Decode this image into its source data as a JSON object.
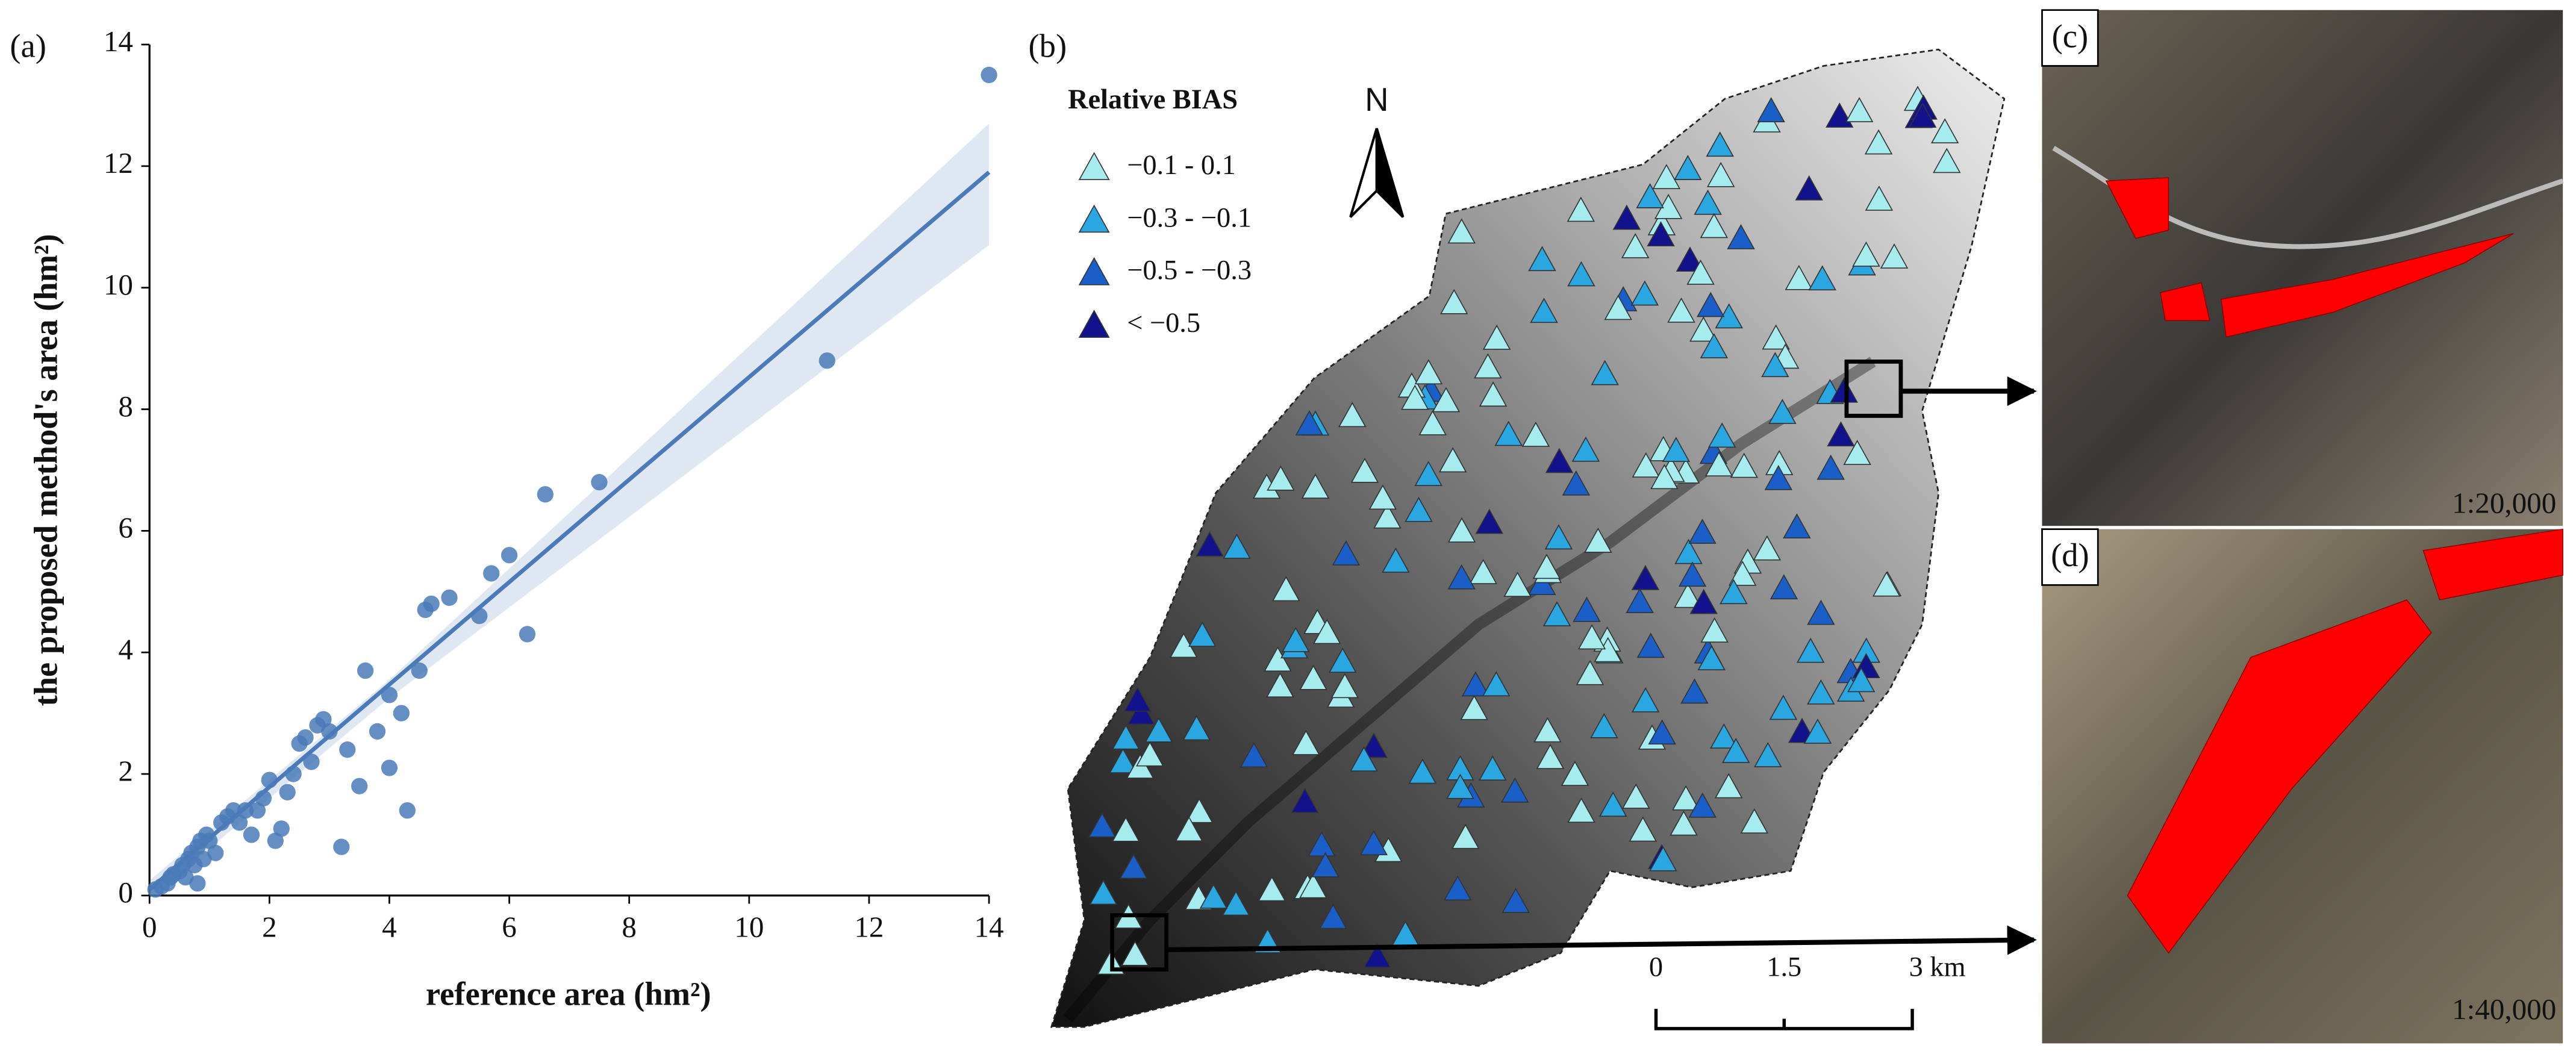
{
  "chart_data": {
    "type": "scatter",
    "x_label": "reference area (hm²)",
    "y_label": "the proposed method's area (hm²)",
    "xlim": [
      0,
      14
    ],
    "ylim": [
      0,
      14
    ],
    "xticks": [
      0,
      2,
      4,
      6,
      8,
      10,
      12,
      14
    ],
    "yticks": [
      0,
      2,
      4,
      6,
      8,
      10,
      12,
      14
    ],
    "color": "#4a7ab8",
    "x": [
      0.1,
      0.2,
      0.3,
      0.35,
      0.4,
      0.5,
      0.55,
      0.6,
      0.65,
      0.7,
      0.75,
      0.8,
      0.85,
      0.9,
      0.95,
      1.0,
      0.8,
      1.1,
      1.2,
      1.3,
      1.4,
      1.5,
      1.6,
      1.7,
      1.8,
      1.9,
      2.0,
      2.1,
      2.2,
      2.3,
      2.4,
      2.5,
      2.6,
      2.7,
      2.8,
      2.9,
      3.0,
      3.2,
      3.3,
      3.5,
      3.6,
      3.8,
      4.0,
      4.0,
      4.2,
      4.3,
      4.5,
      4.6,
      4.7,
      5.0,
      5.5,
      5.7,
      6.0,
      6.3,
      6.6,
      7.5,
      11.3,
      14.0
    ],
    "values": [
      0.1,
      0.15,
      0.2,
      0.3,
      0.35,
      0.4,
      0.5,
      0.3,
      0.6,
      0.7,
      0.5,
      0.8,
      0.9,
      0.6,
      1.0,
      0.9,
      0.2,
      0.7,
      1.2,
      1.3,
      1.4,
      1.2,
      1.4,
      1.0,
      1.4,
      1.6,
      1.9,
      0.9,
      1.1,
      1.7,
      2.0,
      2.5,
      2.6,
      2.2,
      2.8,
      2.9,
      2.7,
      0.8,
      2.4,
      1.8,
      3.7,
      2.7,
      3.3,
      2.1,
      3.0,
      1.4,
      3.7,
      4.7,
      4.8,
      4.9,
      4.6,
      5.3,
      5.6,
      4.3,
      6.6,
      6.8,
      8.8,
      13.5
    ],
    "fit": {
      "x": [
        0,
        14
      ],
      "values": [
        0.1,
        11.9
      ]
    },
    "ci_band": {
      "x": [
        0,
        4,
        14
      ],
      "lower": [
        -0.05,
        3.25,
        10.7
      ],
      "upper": [
        0.25,
        3.55,
        12.7
      ]
    }
  },
  "panel_labels": [
    "(a)",
    "(b)",
    "(c)",
    "(d)"
  ],
  "map": {
    "legend_title": "Relative BIAS",
    "classes": [
      {
        "label": "−0.1 - 0.1",
        "color": "#a6ecee"
      },
      {
        "label": "−0.3 - −0.1",
        "color": "#2aa6e0"
      },
      {
        "label": "−0.5 - −0.3",
        "color": "#1a5fc8"
      },
      {
        "label": "< −0.5",
        "color": "#12128c"
      }
    ],
    "north": "N",
    "scale_labels": [
      "0",
      "1.5",
      "3 km"
    ]
  },
  "insets": [
    {
      "scale": "1:20,000"
    },
    {
      "scale": "1:40,000"
    }
  ]
}
